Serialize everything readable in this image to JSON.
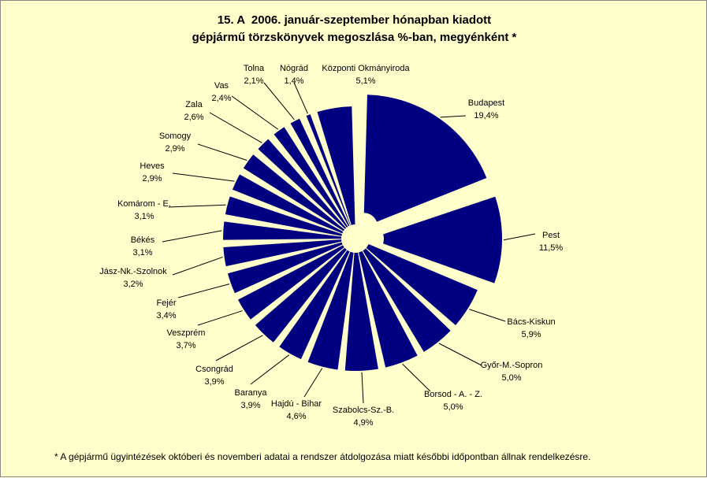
{
  "chart_data": {
    "type": "pie",
    "title": [
      "15. A  2006. január-szeptember hónapban kiadott",
      "gépjármű törzskönyvek megoszlása %-ban, megyénként *"
    ],
    "unit": "%",
    "slices": [
      {
        "name": "Budapest",
        "value": 19.4,
        "label": "19,4%"
      },
      {
        "name": "Pest",
        "value": 11.5,
        "label": "11,5%"
      },
      {
        "name": "Bács-Kiskun",
        "value": 5.9,
        "label": "5,9%"
      },
      {
        "name": "Győr-M.-Sopron",
        "value": 5.0,
        "label": "5,0%"
      },
      {
        "name": "Borsod - A. - Z.",
        "value": 5.0,
        "label": "5,0%"
      },
      {
        "name": "Szabolcs-Sz.-B.",
        "value": 4.9,
        "label": "4,9%"
      },
      {
        "name": "Hajdú - Bihar",
        "value": 4.6,
        "label": "4,6%"
      },
      {
        "name": "Baranya",
        "value": 3.9,
        "label": "3,9%"
      },
      {
        "name": "Csongrád",
        "value": 3.9,
        "label": "3,9%"
      },
      {
        "name": "Veszprém",
        "value": 3.7,
        "label": "3,7%"
      },
      {
        "name": "Fejér",
        "value": 3.4,
        "label": "3,4%"
      },
      {
        "name": "Jász-Nk.-Szolnok",
        "value": 3.2,
        "label": "3,2%"
      },
      {
        "name": "Békés",
        "value": 3.1,
        "label": "3,1%"
      },
      {
        "name": "Komárom - E.",
        "value": 3.1,
        "label": "3,1%"
      },
      {
        "name": "Heves",
        "value": 2.9,
        "label": "2,9%"
      },
      {
        "name": "Somogy",
        "value": 2.9,
        "label": "2,9%"
      },
      {
        "name": "Zala",
        "value": 2.6,
        "label": "2,6%"
      },
      {
        "name": "Vas",
        "value": 2.4,
        "label": "2,4%"
      },
      {
        "name": "Tolna",
        "value": 2.1,
        "label": "2,1%"
      },
      {
        "name": "Nógrád",
        "value": 1.4,
        "label": "1,4%"
      },
      {
        "name": "Központi Okmányiroda",
        "value": 5.1,
        "label": "5,1%"
      }
    ],
    "legend": "none",
    "colors": {
      "slice": "#000080",
      "background": "#ffffcc"
    }
  },
  "footnote": "*  A gépjármű ügyintézések októberi és novemberi adatai a rendszer átdolgozása miatt későbbi időpontban állnak rendelkezésre."
}
